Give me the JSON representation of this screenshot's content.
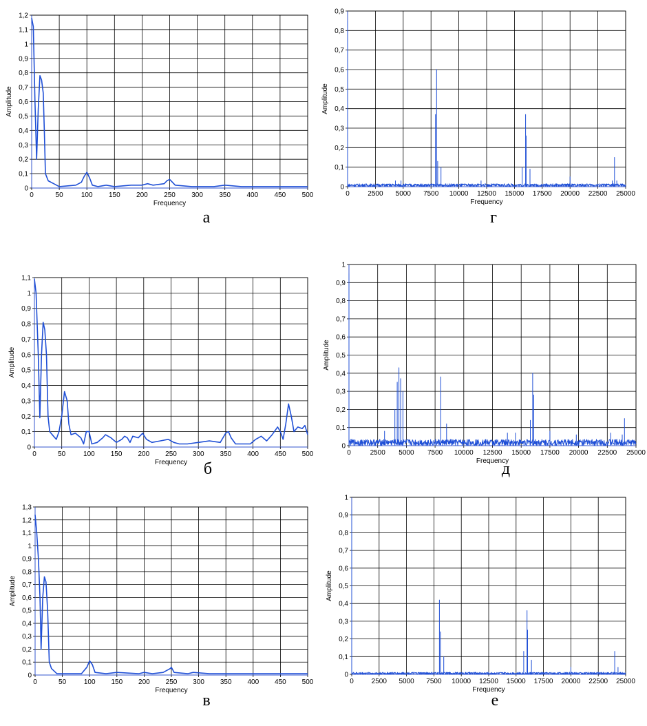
{
  "chart_data": [
    {
      "id": "a",
      "caption": "а",
      "type": "line",
      "xlabel": "Frequency",
      "ylabel": "Amplitude",
      "xlim": [
        0,
        500
      ],
      "ylim": [
        0,
        1.2
      ],
      "xticks": [
        0,
        50,
        100,
        150,
        200,
        250,
        300,
        350,
        400,
        450,
        500
      ],
      "yticks": [
        "0",
        "0,1",
        "0,2",
        "0,3",
        "0,4",
        "0,5",
        "0,6",
        "0,7",
        "0,8",
        "0,9",
        "1",
        "1,1",
        "1,2"
      ],
      "grid": true,
      "line_color": "#1f4fd6",
      "series": [
        {
          "points": [
            [
              0,
              1.18
            ],
            [
              3,
              1.12
            ],
            [
              6,
              0.6
            ],
            [
              9,
              0.2
            ],
            [
              12,
              0.55
            ],
            [
              15,
              0.78
            ],
            [
              18,
              0.75
            ],
            [
              21,
              0.66
            ],
            [
              23,
              0.4
            ],
            [
              25,
              0.1
            ],
            [
              30,
              0.05
            ],
            [
              40,
              0.03
            ],
            [
              50,
              0.01
            ],
            [
              80,
              0.02
            ],
            [
              90,
              0.04
            ],
            [
              95,
              0.08
            ],
            [
              100,
              0.11
            ],
            [
              105,
              0.07
            ],
            [
              110,
              0.02
            ],
            [
              120,
              0.01
            ],
            [
              135,
              0.02
            ],
            [
              150,
              0.01
            ],
            [
              180,
              0.02
            ],
            [
              200,
              0.02
            ],
            [
              210,
              0.03
            ],
            [
              220,
              0.02
            ],
            [
              240,
              0.03
            ],
            [
              245,
              0.05
            ],
            [
              250,
              0.06
            ],
            [
              255,
              0.04
            ],
            [
              260,
              0.02
            ],
            [
              290,
              0.01
            ],
            [
              330,
              0.01
            ],
            [
              350,
              0.02
            ],
            [
              380,
              0.01
            ],
            [
              420,
              0.01
            ],
            [
              500,
              0.01
            ]
          ]
        }
      ]
    },
    {
      "id": "b",
      "caption": "б",
      "type": "line",
      "xlabel": "Frequency",
      "ylabel": "Amplitude",
      "xlim": [
        0,
        500
      ],
      "ylim": [
        0,
        1.1
      ],
      "xticks": [
        0,
        50,
        100,
        150,
        200,
        250,
        300,
        350,
        400,
        450,
        500
      ],
      "yticks": [
        "0",
        "0,1",
        "0,2",
        "0,3",
        "0,4",
        "0,5",
        "0,6",
        "0,7",
        "0,8",
        "0,9",
        "1",
        "1,1"
      ],
      "grid": true,
      "line_color": "#1f4fd6",
      "series": [
        {
          "points": [
            [
              0,
              1.09
            ],
            [
              3,
              1.0
            ],
            [
              7,
              0.6
            ],
            [
              10,
              0.19
            ],
            [
              13,
              0.6
            ],
            [
              16,
              0.81
            ],
            [
              19,
              0.76
            ],
            [
              22,
              0.6
            ],
            [
              25,
              0.2
            ],
            [
              28,
              0.1
            ],
            [
              35,
              0.07
            ],
            [
              40,
              0.05
            ],
            [
              45,
              0.1
            ],
            [
              50,
              0.2
            ],
            [
              55,
              0.36
            ],
            [
              60,
              0.3
            ],
            [
              63,
              0.15
            ],
            [
              67,
              0.08
            ],
            [
              75,
              0.09
            ],
            [
              85,
              0.06
            ],
            [
              90,
              0.02
            ],
            [
              95,
              0.1
            ],
            [
              100,
              0.1
            ],
            [
              105,
              0.02
            ],
            [
              115,
              0.03
            ],
            [
              125,
              0.06
            ],
            [
              130,
              0.08
            ],
            [
              140,
              0.06
            ],
            [
              150,
              0.03
            ],
            [
              160,
              0.05
            ],
            [
              165,
              0.07
            ],
            [
              170,
              0.06
            ],
            [
              175,
              0.03
            ],
            [
              180,
              0.07
            ],
            [
              190,
              0.06
            ],
            [
              198,
              0.09
            ],
            [
              205,
              0.05
            ],
            [
              215,
              0.03
            ],
            [
              230,
              0.04
            ],
            [
              245,
              0.05
            ],
            [
              255,
              0.03
            ],
            [
              265,
              0.02
            ],
            [
              280,
              0.02
            ],
            [
              300,
              0.03
            ],
            [
              320,
              0.04
            ],
            [
              340,
              0.03
            ],
            [
              350,
              0.09
            ],
            [
              355,
              0.1
            ],
            [
              360,
              0.06
            ],
            [
              368,
              0.02
            ],
            [
              380,
              0.02
            ],
            [
              395,
              0.02
            ],
            [
              405,
              0.05
            ],
            [
              415,
              0.07
            ],
            [
              425,
              0.04
            ],
            [
              435,
              0.08
            ],
            [
              445,
              0.13
            ],
            [
              450,
              0.1
            ],
            [
              455,
              0.05
            ],
            [
              460,
              0.15
            ],
            [
              465,
              0.28
            ],
            [
              470,
              0.2
            ],
            [
              475,
              0.1
            ],
            [
              482,
              0.13
            ],
            [
              490,
              0.12
            ],
            [
              495,
              0.14
            ],
            [
              500,
              0.08
            ]
          ]
        }
      ]
    },
    {
      "id": "v",
      "caption": "в",
      "type": "line",
      "xlabel": "Frequency",
      "ylabel": "Amplitude",
      "xlim": [
        0,
        500
      ],
      "ylim": [
        0,
        1.3
      ],
      "xticks": [
        0,
        50,
        100,
        150,
        200,
        250,
        300,
        350,
        400,
        450,
        500
      ],
      "yticks": [
        "0",
        "0,1",
        "0,2",
        "0,3",
        "0,4",
        "0,5",
        "0,6",
        "0,7",
        "0,8",
        "0,9",
        "1",
        "1,1",
        "1,2",
        "1,3"
      ],
      "grid": true,
      "line_color": "#1f4fd6",
      "series": [
        {
          "points": [
            [
              0,
              1.24
            ],
            [
              3,
              1.1
            ],
            [
              6,
              0.9
            ],
            [
              9,
              0.6
            ],
            [
              11,
              0.2
            ],
            [
              14,
              0.6
            ],
            [
              17,
              0.76
            ],
            [
              20,
              0.72
            ],
            [
              23,
              0.5
            ],
            [
              26,
              0.1
            ],
            [
              30,
              0.05
            ],
            [
              40,
              0.01
            ],
            [
              60,
              0.01
            ],
            [
              85,
              0.01
            ],
            [
              95,
              0.06
            ],
            [
              100,
              0.11
            ],
            [
              105,
              0.08
            ],
            [
              110,
              0.02
            ],
            [
              130,
              0.01
            ],
            [
              150,
              0.02
            ],
            [
              190,
              0.01
            ],
            [
              200,
              0.02
            ],
            [
              215,
              0.01
            ],
            [
              235,
              0.02
            ],
            [
              248,
              0.05
            ],
            [
              250,
              0.06
            ],
            [
              255,
              0.02
            ],
            [
              280,
              0.01
            ],
            [
              290,
              0.02
            ],
            [
              320,
              0.01
            ],
            [
              350,
              0.01
            ],
            [
              400,
              0.01
            ],
            [
              450,
              0.01
            ],
            [
              500,
              0.01
            ]
          ]
        }
      ]
    },
    {
      "id": "g",
      "caption": "г",
      "type": "line",
      "xlabel": "Frequency",
      "ylabel": "Amplitude",
      "xlim": [
        0,
        25000
      ],
      "ylim": [
        0,
        0.9
      ],
      "xticks": [
        0,
        2500,
        5000,
        7500,
        10000,
        12500,
        15000,
        17500,
        20000,
        22500,
        25000
      ],
      "yticks": [
        "0",
        "0,1",
        "0,2",
        "0,3",
        "0,4",
        "0,5",
        "0,6",
        "0,7",
        "0,8",
        "0,9"
      ],
      "grid": true,
      "line_color": "#1f4fd6",
      "noise": 0.015,
      "peaks": [
        [
          0,
          0.85
        ],
        [
          4300,
          0.03
        ],
        [
          4800,
          0.03
        ],
        [
          7900,
          0.37
        ],
        [
          8000,
          0.6
        ],
        [
          8100,
          0.13
        ],
        [
          8400,
          0.1
        ],
        [
          12000,
          0.03
        ],
        [
          15700,
          0.1
        ],
        [
          16000,
          0.37
        ],
        [
          16050,
          0.26
        ],
        [
          16400,
          0.09
        ],
        [
          20000,
          0.05
        ],
        [
          23800,
          0.03
        ],
        [
          24000,
          0.15
        ],
        [
          24200,
          0.03
        ]
      ]
    },
    {
      "id": "d",
      "caption": "д",
      "type": "line",
      "xlabel": "Frequency",
      "ylabel": "Amplitude",
      "xlim": [
        0,
        25000
      ],
      "ylim": [
        0,
        1
      ],
      "xticks": [
        0,
        2500,
        5000,
        7500,
        10000,
        12500,
        15000,
        17500,
        20000,
        22500,
        25000
      ],
      "yticks": [
        "0",
        "0,1",
        "0,2",
        "0,3",
        "0,4",
        "0,5",
        "0,6",
        "0,7",
        "0,8",
        "0,9",
        "1"
      ],
      "grid": true,
      "line_color": "#1f4fd6",
      "noise": 0.035,
      "peaks": [
        [
          0,
          0.95
        ],
        [
          3100,
          0.08
        ],
        [
          4000,
          0.2
        ],
        [
          4200,
          0.35
        ],
        [
          4350,
          0.43
        ],
        [
          4500,
          0.37
        ],
        [
          4700,
          0.3
        ],
        [
          8000,
          0.38
        ],
        [
          8500,
          0.12
        ],
        [
          13800,
          0.07
        ],
        [
          14500,
          0.07
        ],
        [
          15800,
          0.14
        ],
        [
          16000,
          0.4
        ],
        [
          16100,
          0.28
        ],
        [
          17500,
          0.08
        ],
        [
          19800,
          0.06
        ],
        [
          22800,
          0.07
        ],
        [
          23800,
          0.06
        ],
        [
          24000,
          0.15
        ]
      ]
    },
    {
      "id": "e",
      "caption": "е",
      "type": "line",
      "xlabel": "Frequency",
      "ylabel": "Amplitude",
      "xlim": [
        0,
        25000
      ],
      "ylim": [
        0,
        1
      ],
      "xticks": [
        0,
        2500,
        5000,
        7500,
        10000,
        12500,
        15000,
        17500,
        20000,
        22500,
        25000
      ],
      "yticks": [
        "0",
        "0,1",
        "0,2",
        "0,3",
        "0,4",
        "0,5",
        "0,6",
        "0,7",
        "0,8",
        "0,9",
        "1"
      ],
      "grid": true,
      "line_color": "#1f4fd6",
      "noise": 0.012,
      "peaks": [
        [
          0,
          0.93
        ],
        [
          8000,
          0.42
        ],
        [
          8100,
          0.24
        ],
        [
          8400,
          0.1
        ],
        [
          15700,
          0.13
        ],
        [
          16000,
          0.36
        ],
        [
          16050,
          0.25
        ],
        [
          16400,
          0.08
        ],
        [
          20000,
          0.04
        ],
        [
          24000,
          0.13
        ],
        [
          24300,
          0.04
        ]
      ]
    }
  ]
}
